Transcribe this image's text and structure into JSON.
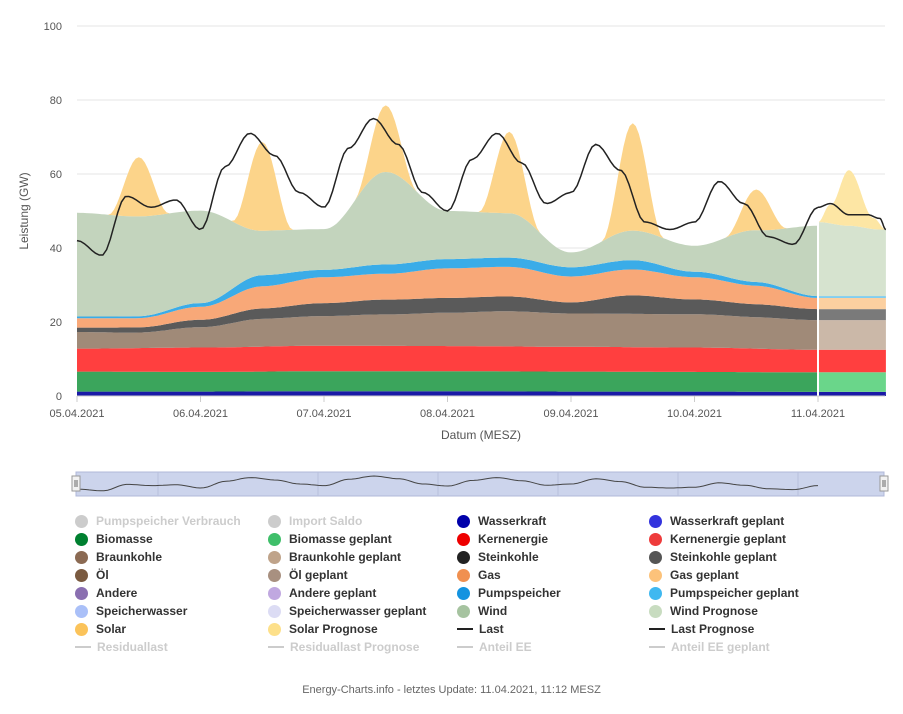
{
  "chart_data": {
    "type": "area",
    "title": "",
    "xlabel": "Datum (MESZ)",
    "ylabel": "Leistung (GW)",
    "ylim": [
      0,
      100
    ],
    "yticks": [
      "0",
      "20",
      "40",
      "60",
      "80",
      "100"
    ],
    "xticks": [
      "05.04.2021",
      "06.04.2021",
      "07.04.2021",
      "08.04.2021",
      "09.04.2021",
      "10.04.2021",
      "11.04.2021"
    ],
    "x_range_days": [
      0,
      6.55
    ],
    "forecast_start_day": 6.0,
    "series": [
      {
        "name": "Wasserkraft",
        "color": "#1a1aa6",
        "x_days": [
          0,
          1,
          2,
          3,
          4,
          5,
          6
        ],
        "values": [
          1.2,
          1.2,
          1.3,
          1.3,
          1.2,
          1.2,
          1.1
        ]
      },
      {
        "name": "Biomasse",
        "color": "#3ba55c",
        "x_days": [
          0,
          1,
          2,
          3,
          4,
          5,
          6
        ],
        "values": [
          5.4,
          5.3,
          5.4,
          5.4,
          5.4,
          5.3,
          5.3
        ]
      },
      {
        "name": "Kernenergie",
        "color": "#ff3f3f",
        "x_days": [
          0,
          1,
          2,
          3,
          4,
          5,
          6
        ],
        "values": [
          6.2,
          6.6,
          6.9,
          6.8,
          6.7,
          6.6,
          6.1
        ]
      },
      {
        "name": "Braunkohle",
        "x_days": [
          0,
          0.5,
          1,
          1.5,
          2,
          2.5,
          3,
          3.5,
          4,
          4.5,
          5,
          5.5,
          6
        ],
        "values": [
          4.5,
          4.2,
          5.5,
          7.5,
          8.0,
          8.5,
          9.0,
          9.5,
          9.0,
          9.0,
          9.0,
          8.5,
          8.0
        ]
      },
      {
        "name": "Steinkohle",
        "x_days": [
          0,
          0.5,
          1,
          1.5,
          2,
          2.5,
          3,
          3.5,
          4,
          4.5,
          5,
          5.5,
          6
        ],
        "values": [
          1.2,
          1.4,
          2.0,
          2.8,
          3.5,
          4.0,
          4.0,
          4.0,
          3.0,
          5.0,
          4.0,
          3.5,
          3.0
        ]
      },
      {
        "name": "Gas",
        "x_days": [
          0,
          0.5,
          1,
          1.5,
          2,
          2.5,
          3,
          3.5,
          4,
          4.5,
          5,
          5.5,
          6
        ],
        "values": [
          2.5,
          2.5,
          3.5,
          6.0,
          7.0,
          7.0,
          8.0,
          8.0,
          7.0,
          7.0,
          6.0,
          5.0,
          3.0
        ]
      },
      {
        "name": "Pumpspeicher",
        "x_days": [
          0,
          0.5,
          1,
          1.5,
          2,
          2.5,
          3,
          3.5,
          4,
          4.5,
          5,
          5.5,
          6
        ],
        "values": [
          0.5,
          0.5,
          1.0,
          3.0,
          2.0,
          2.5,
          2.5,
          2.5,
          2.5,
          2.5,
          1.5,
          1.0,
          0.5
        ]
      },
      {
        "name": "Wind",
        "x_days": [
          0,
          0.5,
          1,
          1.5,
          2,
          2.5,
          3,
          3.5,
          4,
          4.5,
          5,
          5.5,
          6
        ],
        "values": [
          28.0,
          27.0,
          25.0,
          12.0,
          11.0,
          25.0,
          13.0,
          12.0,
          4.0,
          8.0,
          7.0,
          14.0,
          19.0
        ]
      },
      {
        "name": "Solar",
        "x_days": [
          0,
          0.25,
          0.5,
          0.75,
          1,
          1.25,
          1.5,
          1.75,
          2,
          2.25,
          2.5,
          2.75,
          3,
          3.25,
          3.5,
          3.75,
          4,
          4.25,
          4.5,
          4.75,
          5,
          5.25,
          5.5,
          5.75,
          6
        ],
        "values": [
          0,
          0,
          16.0,
          0,
          0,
          0,
          24.0,
          0,
          0,
          0,
          18.0,
          0,
          0,
          0,
          22.0,
          0,
          0,
          0,
          29.0,
          0,
          0,
          0,
          11.0,
          0,
          0
        ]
      },
      {
        "name": "Wind Prognose",
        "x_days": [
          6.0,
          6.25,
          6.5,
          6.55
        ],
        "values": [
          20.0,
          19.0,
          18.0,
          18.0
        ]
      },
      {
        "name": "Solar Prognose",
        "x_days": [
          6.0,
          6.1,
          6.25,
          6.45,
          6.55
        ],
        "values": [
          0,
          5.0,
          15.0,
          3.0,
          0
        ]
      },
      {
        "name": "Last",
        "type": "line",
        "x_days": [
          0,
          0.2,
          0.4,
          0.6,
          0.8,
          1.0,
          1.2,
          1.4,
          1.6,
          1.8,
          2.0,
          2.2,
          2.4,
          2.6,
          2.8,
          3.0,
          3.2,
          3.4,
          3.6,
          3.8,
          4.0,
          4.2,
          4.4,
          4.6,
          4.8,
          5.0,
          5.2,
          5.4,
          5.6,
          5.8,
          6.0
        ],
        "values": [
          42,
          38,
          54,
          51,
          53,
          45,
          62,
          71,
          65,
          55,
          51,
          67,
          75,
          68,
          55,
          50,
          64,
          71,
          63,
          52,
          55,
          68,
          61,
          47,
          45,
          47,
          58,
          52,
          43,
          41,
          51
        ]
      },
      {
        "name": "Last Prognose",
        "type": "line",
        "x_days": [
          6.0,
          6.1,
          6.25,
          6.4,
          6.5,
          6.55
        ],
        "values": [
          51,
          52,
          49,
          49,
          48,
          45
        ]
      }
    ],
    "legend": [
      {
        "label": "Pumpspeicher Verbrauch",
        "color": "#cccccc",
        "kind": "dot",
        "hidden": true
      },
      {
        "label": "Import Saldo",
        "color": "#cccccc",
        "kind": "dot",
        "hidden": true
      },
      {
        "label": "Wasserkraft",
        "color": "#0000aa",
        "kind": "dot",
        "hidden": false
      },
      {
        "label": "Wasserkraft geplant",
        "color": "#3333dd",
        "kind": "dot",
        "hidden": false
      },
      {
        "label": "Biomasse",
        "color": "#008030",
        "kind": "dot",
        "hidden": false
      },
      {
        "label": "Biomasse geplant",
        "color": "#3fbf6a",
        "kind": "dot",
        "hidden": false
      },
      {
        "label": "Kernenergie",
        "color": "#ee0000",
        "kind": "dot",
        "hidden": false
      },
      {
        "label": "Kernenergie geplant",
        "color": "#ee3b3b",
        "kind": "dot",
        "hidden": false
      },
      {
        "label": "Braunkohle",
        "color": "#8b6a53",
        "kind": "dot",
        "hidden": false
      },
      {
        "label": "Braunkohle geplant",
        "color": "#bfa38a",
        "kind": "dot",
        "hidden": false
      },
      {
        "label": "Steinkohle",
        "color": "#222222",
        "kind": "dot",
        "hidden": false
      },
      {
        "label": "Steinkohle geplant",
        "color": "#555555",
        "kind": "dot",
        "hidden": false
      },
      {
        "label": "Öl",
        "color": "#7a5a40",
        "kind": "dot",
        "hidden": false
      },
      {
        "label": "Öl geplant",
        "color": "#a89080",
        "kind": "dot",
        "hidden": false
      },
      {
        "label": "Gas",
        "color": "#f09050",
        "kind": "dot",
        "hidden": false
      },
      {
        "label": "Gas geplant",
        "color": "#fcc27a",
        "kind": "dot",
        "hidden": false
      },
      {
        "label": "Andere",
        "color": "#8a6fb0",
        "kind": "dot",
        "hidden": false
      },
      {
        "label": "Andere geplant",
        "color": "#c0a8e0",
        "kind": "dot",
        "hidden": false
      },
      {
        "label": "Pumpspeicher",
        "color": "#1493e0",
        "kind": "dot",
        "hidden": false
      },
      {
        "label": "Pumpspeicher geplant",
        "color": "#3fb8f0",
        "kind": "dot",
        "hidden": false
      },
      {
        "label": "Speicherwasser",
        "color": "#aac0f8",
        "kind": "dot",
        "hidden": false
      },
      {
        "label": "Speicherwasser geplant",
        "color": "#dcdcf4",
        "kind": "dot",
        "hidden": false
      },
      {
        "label": "Wind",
        "color": "#a6c3a0",
        "kind": "dot",
        "hidden": false
      },
      {
        "label": "Wind Prognose",
        "color": "#c8dcc0",
        "kind": "dot",
        "hidden": false
      },
      {
        "label": "Solar",
        "color": "#fbc35a",
        "kind": "dot",
        "hidden": false
      },
      {
        "label": "Solar Prognose",
        "color": "#fde08a",
        "kind": "dot",
        "hidden": false
      },
      {
        "label": "Last",
        "color": "#222222",
        "kind": "line",
        "hidden": false
      },
      {
        "label": "Last Prognose",
        "color": "#222222",
        "kind": "line",
        "hidden": false
      },
      {
        "label": "Residuallast",
        "color": "#cccccc",
        "kind": "line",
        "hidden": true
      },
      {
        "label": "Residuallast Prognose",
        "color": "#cccccc",
        "kind": "line",
        "hidden": true
      },
      {
        "label": "Anteil EE",
        "color": "#cccccc",
        "kind": "line",
        "hidden": true
      },
      {
        "label": "Anteil EE geplant",
        "color": "#cccccc",
        "kind": "line",
        "hidden": true
      }
    ],
    "colors": {
      "grid": "#e6e6e6",
      "navigator_mask": "#ccd4ec",
      "navigator_outline": "#b0b8d8",
      "wasserkraft": "#1a1aa6",
      "biomasse": "#3ba55c",
      "biomasse_geplant": "#6ad68a",
      "kernenergie": "#ff3f3f",
      "braunkohle": "#a08a78",
      "braunkohle_geplant": "#cbb8a8",
      "steinkohle": "#5a5a5a",
      "steinkohle_geplant": "#7a7a7a",
      "gas": "#f8a878",
      "gas_geplant": "#fcd0a0",
      "pumpspeicher": "#3aace8",
      "pumpspeicher_geplant": "#70c8f0",
      "wind": "#c3d4bd",
      "wind_prognose": "#d6e3cf",
      "solar": "#fcd48a",
      "solar_prognose": "#fde6a4",
      "last": "#222222"
    }
  },
  "credits": "Energy-Charts.info - letztes Update: 11.04.2021, 11:12 MESZ"
}
